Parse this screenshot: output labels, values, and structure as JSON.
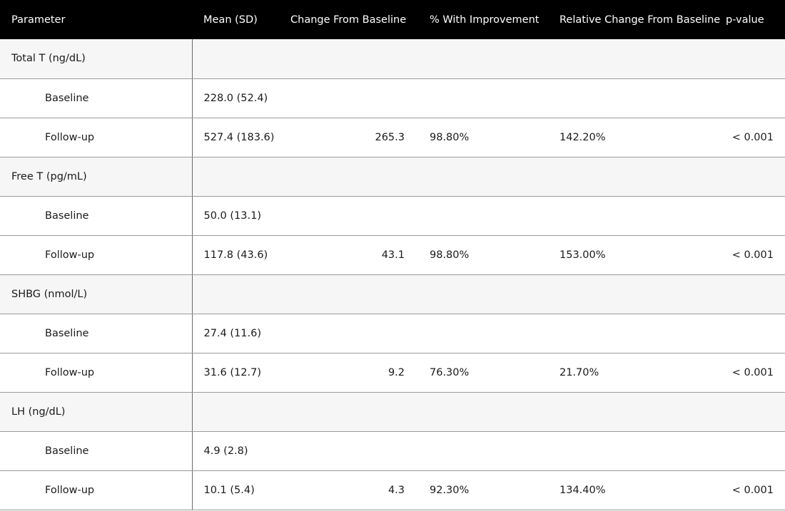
{
  "table": {
    "headers": {
      "parameter": "Parameter",
      "mean": "Mean (SD)",
      "change": "Change From Baseline",
      "pct": "% With Improvement",
      "relative": "Relative Change From Baseline",
      "pvalue": "p-value"
    },
    "groups": [
      {
        "label": "Total T (ng/dL)",
        "baseline": {
          "label": "Baseline",
          "mean": "228.0 (52.4)"
        },
        "followup": {
          "label": "Follow-up",
          "mean": "527.4 (183.6)",
          "change": "265.3",
          "pct": "98.80%",
          "relative": "142.20%",
          "pvalue": "< 0.001"
        }
      },
      {
        "label": "Free T (pg/mL)",
        "baseline": {
          "label": "Baseline",
          "mean": "50.0 (13.1)"
        },
        "followup": {
          "label": "Follow-up",
          "mean": "117.8 (43.6)",
          "change": "43.1",
          "pct": "98.80%",
          "relative": "153.00%",
          "pvalue": "< 0.001"
        }
      },
      {
        "label": "SHBG (nmol/L)",
        "baseline": {
          "label": "Baseline",
          "mean": "27.4 (11.6)"
        },
        "followup": {
          "label": "Follow-up",
          "mean": "31.6 (12.7)",
          "change": "9.2",
          "pct": "76.30%",
          "relative": "21.70%",
          "pvalue": "< 0.001"
        }
      },
      {
        "label": "LH (ng/dL)",
        "baseline": {
          "label": "Baseline",
          "mean": "4.9 (2.8)"
        },
        "followup": {
          "label": "Follow-up",
          "mean": "10.1 (5.4)",
          "change": "4.3",
          "pct": "92.30%",
          "relative": "134.40%",
          "pvalue": "< 0.001"
        }
      }
    ]
  }
}
